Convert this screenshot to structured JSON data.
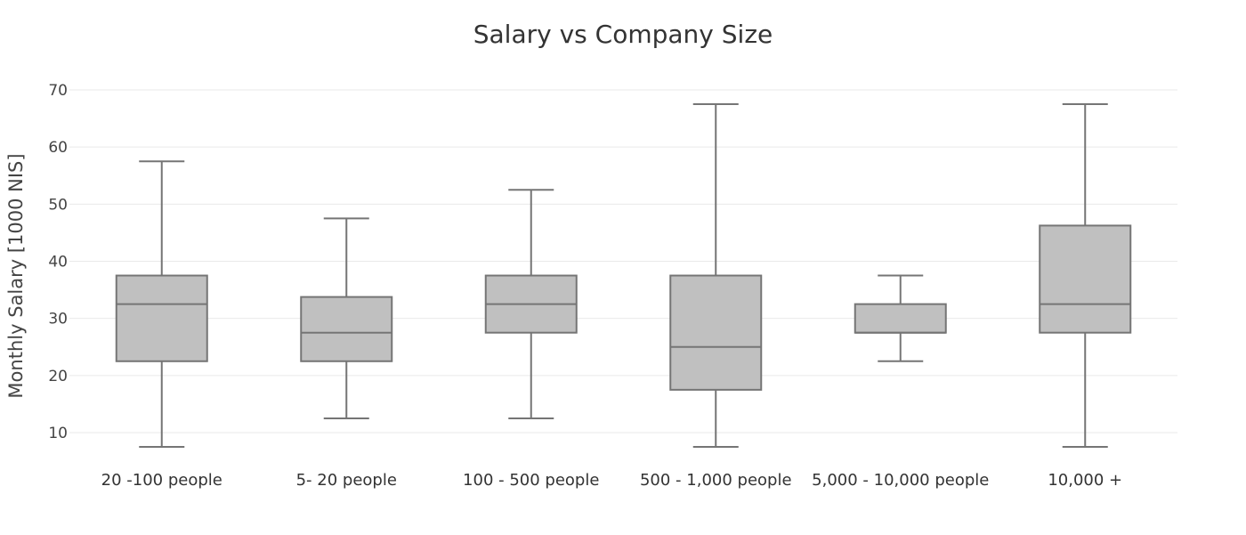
{
  "chart_data": {
    "type": "box",
    "title": "Salary vs Company Size",
    "xlabel": "",
    "ylabel": "Monthly Salary [1000 NIS]",
    "ylim": [
      5,
      72
    ],
    "yticks": [
      10,
      20,
      30,
      40,
      50,
      60,
      70
    ],
    "grid": true,
    "legend": "none",
    "box_color": "#c0c0c0",
    "line_color": "#757575",
    "categories": [
      "20 -100 people",
      "5- 20 people",
      "100 - 500 people",
      "500 - 1,000 people",
      "5,000 - 10,000 people",
      "10,000 +"
    ],
    "boxes": [
      {
        "category": "20 -100 people",
        "min": 7.5,
        "q1": 22.5,
        "median": 32.5,
        "q3": 37.5,
        "max": 57.5
      },
      {
        "category": "5- 20 people",
        "min": 12.5,
        "q1": 22.5,
        "median": 27.5,
        "q3": 33.75,
        "max": 47.5
      },
      {
        "category": "100 - 500 people",
        "min": 12.5,
        "q1": 27.5,
        "median": 32.5,
        "q3": 37.5,
        "max": 52.5
      },
      {
        "category": "500 - 1,000 people",
        "min": 7.5,
        "q1": 17.5,
        "median": 25,
        "q3": 37.5,
        "max": 67.5
      },
      {
        "category": "5,000 - 10,000 people",
        "min": 22.5,
        "q1": 27.5,
        "median": 27.5,
        "q3": 32.5,
        "max": 37.5
      },
      {
        "category": "10,000 +",
        "min": 7.5,
        "q1": 27.5,
        "median": 32.5,
        "q3": 46.25,
        "max": 67.5
      }
    ]
  }
}
